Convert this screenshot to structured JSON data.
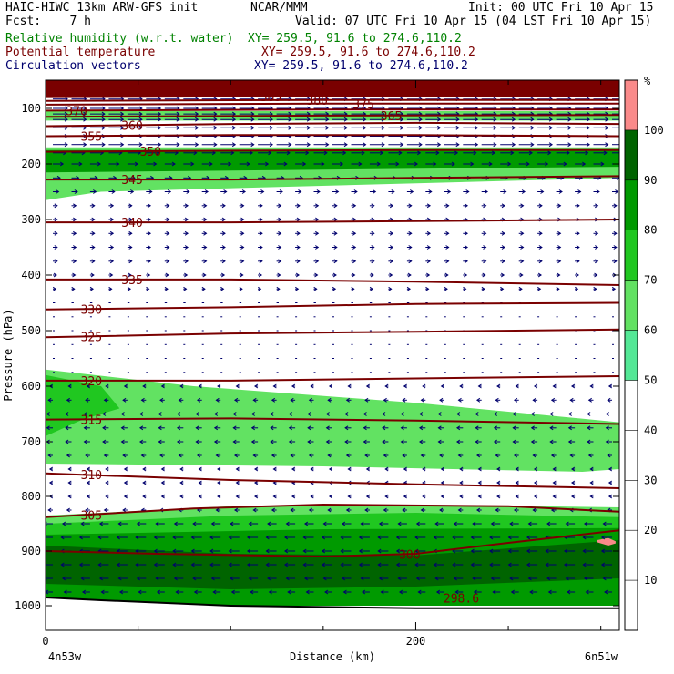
{
  "header": {
    "line1_left": "HAIC-HIWC 13km ARW-GFS init",
    "line1_center": "NCAR/MMM",
    "line1_right": "Init: 00 UTC Fri 10 Apr 15",
    "line2_left": "Fcst:    7 h",
    "line2_right": "Valid: 07 UTC Fri 10 Apr 15 (04 LST Fri 10 Apr 15)",
    "fields": [
      {
        "name": "Relative humidity (w.r.t. water)",
        "xy": "XY= 259.5, 91.6 to 274.6,110.2",
        "color": "#008200"
      },
      {
        "name": "Potential temperature",
        "xy": "XY= 259.5, 91.6 to 274.6,110.2",
        "color": "#7a0000"
      },
      {
        "name": "Circulation vectors",
        "xy": "XY= 259.5, 91.6 to 274.6,110.2",
        "color": "#00006e"
      }
    ]
  },
  "chart_data": {
    "type": "heatmap",
    "xlabel": "Distance (km)",
    "ylabel": "Pressure (hPa)",
    "x_ticks": [
      0,
      200
    ],
    "x_range": [
      0,
      310
    ],
    "y_ticks": [
      100,
      200,
      300,
      400,
      500,
      600,
      700,
      800,
      900,
      1000
    ],
    "y_range": [
      1050,
      70
    ],
    "y_scale": "log",
    "x_end_labels": {
      "left": "4n53w",
      "right": "6n51w"
    },
    "colorbar": {
      "unit": "%",
      "levels": [
        10,
        20,
        30,
        40,
        50,
        60,
        70,
        80,
        90,
        100
      ],
      "colors": [
        "#ffffff",
        "#ffffff",
        "#ffffff",
        "#ffffff",
        "#ffffff",
        "#53e896",
        "#62e262",
        "#20c720",
        "#009a00",
        "#006400",
        "#fa8a8a"
      ]
    },
    "rh_regions": [
      {
        "level": 60,
        "top": [
          [
            0,
            170
          ],
          [
            310,
            170
          ]
        ],
        "bottom": [
          [
            0,
            265
          ],
          [
            30,
            250
          ],
          [
            310,
            225
          ]
        ]
      },
      {
        "level": 80,
        "top": [
          [
            0,
            175
          ],
          [
            310,
            175
          ]
        ],
        "bottom": [
          [
            0,
            215
          ],
          [
            310,
            205
          ]
        ]
      },
      {
        "level": 60,
        "top": [
          [
            0,
            105
          ],
          [
            310,
            105
          ]
        ],
        "bottom": [
          [
            0,
            122
          ],
          [
            310,
            122
          ]
        ]
      },
      {
        "level": 60,
        "top": [
          [
            0,
            570
          ],
          [
            80,
            600
          ],
          [
            200,
            630
          ],
          [
            310,
            665
          ]
        ],
        "bottom": [
          [
            0,
            740
          ],
          [
            150,
            745
          ],
          [
            290,
            755
          ],
          [
            310,
            750
          ]
        ]
      },
      {
        "level": 70,
        "top": [
          [
            0,
            580
          ],
          [
            30,
            600
          ],
          [
            40,
            640
          ]
        ],
        "bottom": [
          [
            0,
            690
          ],
          [
            20,
            660
          ],
          [
            40,
            640
          ]
        ]
      },
      {
        "level": 60,
        "top": [
          [
            0,
            835
          ],
          [
            100,
            818
          ],
          [
            200,
            815
          ],
          [
            310,
            820
          ]
        ],
        "bottom": [
          [
            0,
            1000
          ],
          [
            310,
            1000
          ]
        ]
      },
      {
        "level": 70,
        "top": [
          [
            0,
            850
          ],
          [
            100,
            835
          ],
          [
            200,
            830
          ],
          [
            310,
            838
          ]
        ],
        "bottom": [
          [
            0,
            1000
          ],
          [
            310,
            1000
          ]
        ]
      },
      {
        "level": 80,
        "top": [
          [
            0,
            870
          ],
          [
            150,
            860
          ],
          [
            310,
            858
          ]
        ],
        "bottom": [
          [
            0,
            1000
          ],
          [
            310,
            1000
          ]
        ]
      },
      {
        "level": 90,
        "top": [
          [
            0,
            890
          ],
          [
            100,
            905
          ],
          [
            200,
            908
          ],
          [
            310,
            880
          ]
        ],
        "bottom": [
          [
            0,
            960
          ],
          [
            100,
            970
          ],
          [
            200,
            965
          ],
          [
            310,
            950
          ]
        ]
      },
      {
        "level": 100,
        "top": [
          [
            298,
            880
          ],
          [
            304,
            876
          ],
          [
            308,
            882
          ]
        ],
        "bottom": [
          [
            298,
            884
          ],
          [
            304,
            890
          ],
          [
            308,
            886
          ]
        ]
      }
    ],
    "high_level_region": {
      "level": 100,
      "top": 70,
      "bottom_points": [
        [
          0,
          88
        ],
        [
          310,
          88
        ]
      ]
    },
    "theta_contours": [
      {
        "value": 300,
        "points": [
          [
            0,
            900
          ],
          [
            60,
            905
          ],
          [
            150,
            910
          ],
          [
            200,
            905
          ],
          [
            250,
            885
          ],
          [
            310,
            862
          ]
        ],
        "label_x": 190
      },
      {
        "value": 305,
        "points": [
          [
            0,
            838
          ],
          [
            80,
            822
          ],
          [
            150,
            815
          ],
          [
            250,
            818
          ],
          [
            310,
            828
          ]
        ],
        "label_x": 18
      },
      {
        "value": 310,
        "points": [
          [
            0,
            758
          ],
          [
            100,
            770
          ],
          [
            200,
            778
          ],
          [
            310,
            785
          ]
        ],
        "label_x": 18
      },
      {
        "value": 315,
        "points": [
          [
            0,
            660
          ],
          [
            100,
            658
          ],
          [
            200,
            662
          ],
          [
            310,
            668
          ]
        ],
        "label_x": 18
      },
      {
        "value": 320,
        "points": [
          [
            0,
            590
          ],
          [
            100,
            590
          ],
          [
            200,
            586
          ],
          [
            310,
            582
          ]
        ],
        "label_x": 18
      },
      {
        "value": 325,
        "points": [
          [
            0,
            512
          ],
          [
            100,
            505
          ],
          [
            200,
            502
          ],
          [
            310,
            498
          ]
        ],
        "label_x": 18
      },
      {
        "value": 330,
        "points": [
          [
            0,
            462
          ],
          [
            100,
            458
          ],
          [
            200,
            452
          ],
          [
            310,
            450
          ]
        ],
        "label_x": 18
      },
      {
        "value": 335,
        "points": [
          [
            0,
            408
          ],
          [
            100,
            408
          ],
          [
            200,
            412
          ],
          [
            310,
            418
          ]
        ],
        "label_x": 40
      },
      {
        "value": 340,
        "points": [
          [
            0,
            305
          ],
          [
            100,
            305
          ],
          [
            200,
            303
          ],
          [
            310,
            300
          ]
        ],
        "label_x": 40
      },
      {
        "value": 345,
        "points": [
          [
            0,
            228
          ],
          [
            100,
            228
          ],
          [
            200,
            225
          ],
          [
            310,
            222
          ]
        ],
        "label_x": 40
      },
      {
        "value": 350,
        "points": [
          [
            0,
            178
          ],
          [
            100,
            176
          ],
          [
            200,
            175
          ],
          [
            310,
            175
          ]
        ],
        "label_x": 50
      },
      {
        "value": 355,
        "points": [
          [
            0,
            150
          ],
          [
            100,
            148
          ],
          [
            200,
            148
          ],
          [
            310,
            150
          ]
        ],
        "label_x": 18
      },
      {
        "value": 360,
        "points": [
          [
            0,
            132
          ],
          [
            100,
            128
          ],
          [
            200,
            126
          ],
          [
            310,
            128
          ]
        ],
        "label_x": 40
      },
      {
        "value": 365,
        "points": [
          [
            0,
            115
          ],
          [
            150,
            113
          ],
          [
            310,
            112
          ]
        ],
        "label_x": 180
      },
      {
        "value": 370,
        "points": [
          [
            0,
            104
          ],
          [
            150,
            102
          ],
          [
            310,
            102
          ]
        ],
        "label_x": 10
      },
      {
        "value": 375,
        "points": [
          [
            0,
            96
          ],
          [
            150,
            95
          ],
          [
            310,
            95
          ]
        ],
        "label_x": 165
      },
      {
        "value": 380,
        "points": [
          [
            0,
            92
          ],
          [
            150,
            91
          ],
          [
            310,
            91
          ]
        ],
        "label_x": 140
      },
      {
        "value": 385,
        "points": [
          [
            0,
            88
          ],
          [
            150,
            87
          ],
          [
            310,
            87
          ]
        ],
        "label_x": 115
      }
    ],
    "ground_label": "298.6",
    "ground_label_x": 215,
    "terrain_pressure": [
      [
        0,
        985
      ],
      [
        30,
        990
      ],
      [
        100,
        1000
      ],
      [
        200,
        1005
      ],
      [
        310,
        1005
      ]
    ],
    "vector_rows": [
      {
        "p": 90,
        "u": 1
      },
      {
        "p": 100,
        "u": 1
      },
      {
        "p": 110,
        "u": 1
      },
      {
        "p": 120,
        "u": 1
      },
      {
        "p": 135,
        "u": 1
      },
      {
        "p": 150,
        "u": 1
      },
      {
        "p": 165,
        "u": 1
      },
      {
        "p": 180,
        "u": 0.9
      },
      {
        "p": 200,
        "u": 0.7
      },
      {
        "p": 225,
        "u": 0.5
      },
      {
        "p": 250,
        "u": 0.4
      },
      {
        "p": 275,
        "u": 0.3
      },
      {
        "p": 300,
        "u": 0.3
      },
      {
        "p": 325,
        "u": 0.3
      },
      {
        "p": 350,
        "u": 0.3
      },
      {
        "p": 375,
        "u": 0.3
      },
      {
        "p": 400,
        "u": 0.25
      },
      {
        "p": 425,
        "u": 0.2
      },
      {
        "p": 450,
        "u": 0.15
      },
      {
        "p": 475,
        "u": 0.1
      },
      {
        "p": 500,
        "u": 0.05
      },
      {
        "p": 525,
        "u": 0.05
      },
      {
        "p": 550,
        "u": 0.05
      },
      {
        "p": 575,
        "u": 0.05
      },
      {
        "p": 600,
        "u": -0.2
      },
      {
        "p": 625,
        "u": -0.3
      },
      {
        "p": 650,
        "u": -0.4
      },
      {
        "p": 675,
        "u": -0.4
      },
      {
        "p": 700,
        "u": -0.4
      },
      {
        "p": 725,
        "u": -0.3
      },
      {
        "p": 750,
        "u": -0.2
      },
      {
        "p": 775,
        "u": -0.2
      },
      {
        "p": 800,
        "u": -0.2
      },
      {
        "p": 825,
        "u": -0.3
      },
      {
        "p": 850,
        "u": -0.6
      },
      {
        "p": 875,
        "u": -0.7
      },
      {
        "p": 900,
        "u": -0.7
      },
      {
        "p": 925,
        "u": -0.7
      },
      {
        "p": 950,
        "u": -0.6
      },
      {
        "p": 975,
        "u": -0.5
      }
    ]
  }
}
